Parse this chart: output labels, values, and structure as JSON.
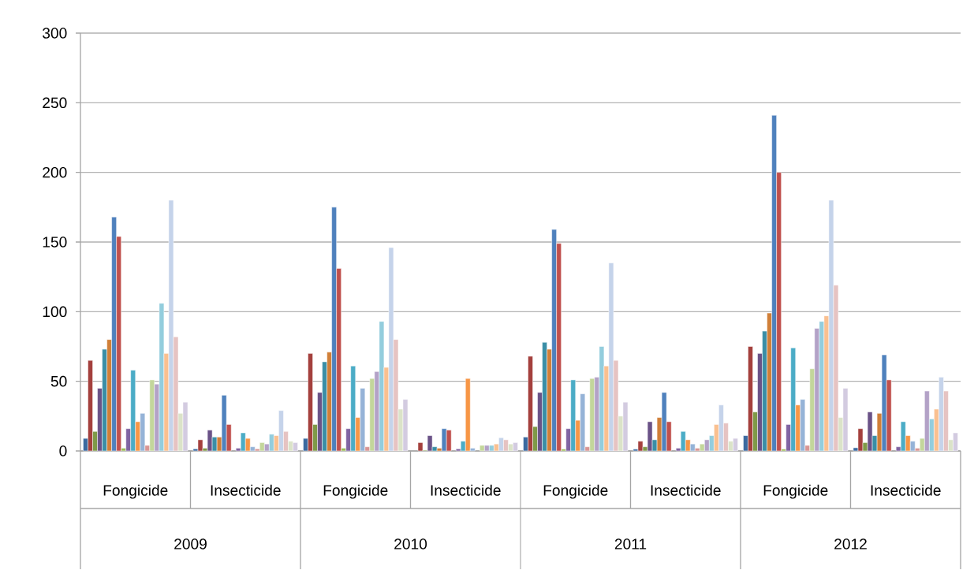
{
  "chart_data": {
    "type": "bar",
    "categories": [
      "Fongicide",
      "Insecticide",
      "Fongicide",
      "Insecticide",
      "Fongicide",
      "Insecticide",
      "Fongicide",
      "Insecticide"
    ],
    "series": [
      {
        "color": "#3b6aa0",
        "values": [
          9,
          1.5,
          9,
          null,
          10,
          1.3,
          11,
          2.3
        ]
      },
      {
        "color": "#a4403d",
        "values": [
          65,
          8,
          70,
          6,
          68,
          7,
          75,
          16
        ]
      },
      {
        "color": "#7f9a48",
        "values": [
          14,
          2,
          19,
          0.5,
          17.5,
          3,
          28,
          6
        ]
      },
      {
        "color": "#6a5287",
        "values": [
          45,
          15,
          42,
          11,
          42,
          21,
          70,
          28
        ]
      },
      {
        "color": "#3a8ea6",
        "values": [
          73,
          10,
          64,
          3,
          78,
          8,
          86,
          11
        ]
      },
      {
        "color": "#d07f38",
        "values": [
          80,
          10,
          71,
          2,
          73,
          24,
          99,
          27
        ]
      },
      {
        "color": "#4f81bd",
        "values": [
          168,
          40,
          175,
          16,
          159,
          42,
          241,
          69
        ]
      },
      {
        "color": "#c0504d",
        "values": [
          154,
          19,
          131,
          15,
          149,
          21,
          200,
          51
        ]
      },
      {
        "color": "#9bbb59",
        "values": [
          2,
          null,
          2,
          null,
          1.3,
          null,
          1.3,
          null
        ]
      },
      {
        "color": "#8064a2",
        "values": [
          16,
          2,
          16,
          1.5,
          16,
          2,
          19,
          3
        ]
      },
      {
        "color": "#4bacc6",
        "values": [
          58,
          13,
          61,
          7,
          51,
          14,
          74,
          21
        ]
      },
      {
        "color": "#f79646",
        "values": [
          21,
          9,
          24,
          52,
          22,
          8,
          33,
          11
        ]
      },
      {
        "color": "#95b3d7",
        "values": [
          27,
          3,
          45,
          2,
          41,
          5,
          37,
          7
        ]
      },
      {
        "color": "#d99694",
        "values": [
          4,
          1.5,
          3,
          null,
          3,
          2,
          4,
          2
        ]
      },
      {
        "color": "#c3d69b",
        "values": [
          51,
          6,
          52,
          4,
          52,
          5,
          59,
          9
        ]
      },
      {
        "color": "#b3a2c7",
        "values": [
          48,
          5,
          57,
          4,
          53,
          8,
          88,
          43
        ]
      },
      {
        "color": "#93cddd",
        "values": [
          106,
          12,
          93,
          4,
          75,
          11,
          93,
          23
        ]
      },
      {
        "color": "#fac090",
        "values": [
          70,
          11,
          60,
          5,
          61,
          19,
          97,
          30
        ]
      },
      {
        "color": "#c5d3ea",
        "values": [
          180,
          29,
          146,
          9.5,
          135,
          33,
          180,
          53
        ]
      },
      {
        "color": "#e6c3c2",
        "values": [
          82,
          14,
          80,
          8,
          65,
          20,
          119,
          43
        ]
      },
      {
        "color": "#dbe3c9",
        "values": [
          27,
          7,
          30,
          5,
          25,
          7,
          24,
          8
        ]
      },
      {
        "color": "#d3cbe0",
        "values": [
          35,
          6,
          37,
          6,
          35,
          9,
          45,
          13
        ]
      }
    ],
    "ylim": [
      0,
      300
    ],
    "yticks": [
      0,
      50,
      100,
      150,
      200,
      250,
      300
    ],
    "grid": "y",
    "annotations": [
      "2009",
      "2010",
      "2011",
      "2012"
    ]
  }
}
